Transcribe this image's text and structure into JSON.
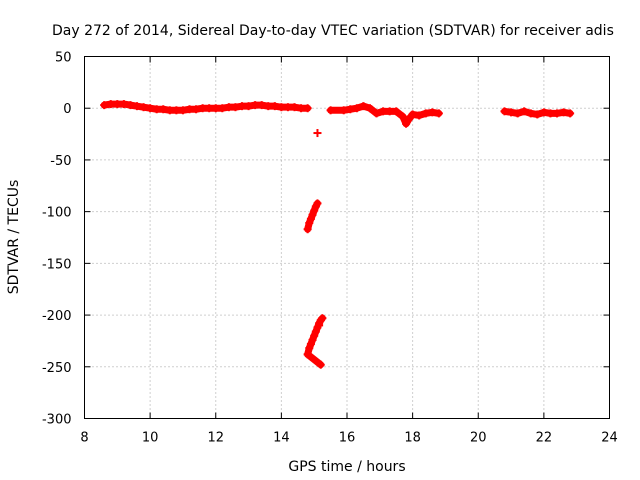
{
  "chart_data": {
    "type": "scatter",
    "title": "Day 272 of 2014, Sidereal Day-to-day VTEC variation (SDTVAR) for receiver adis",
    "xlabel": "GPS time / hours",
    "ylabel": "SDTVAR / TECUs",
    "xlim": [
      8,
      24
    ],
    "ylim": [
      -300,
      50
    ],
    "xticks": [
      8,
      10,
      12,
      14,
      16,
      18,
      20,
      22,
      24
    ],
    "yticks": [
      50,
      0,
      -50,
      -100,
      -150,
      -200,
      -250,
      -300
    ],
    "grid": true,
    "color": "#ff0000",
    "series": [
      {
        "name": "SDTVAR",
        "x": [
          8.6,
          8.8,
          9.0,
          9.2,
          9.4,
          9.6,
          9.8,
          10.0,
          10.2,
          10.4,
          10.6,
          10.8,
          11.0,
          11.2,
          11.4,
          11.6,
          11.8,
          12.0,
          12.2,
          12.4,
          12.6,
          12.8,
          13.0,
          13.2,
          13.4,
          13.6,
          13.8,
          14.0,
          14.2,
          14.4,
          14.6,
          14.8,
          15.1,
          15.5,
          15.9,
          16.1,
          16.3,
          16.5,
          16.7,
          16.9,
          17.1,
          17.3,
          17.5,
          17.7,
          17.8,
          17.9,
          18.0,
          18.2,
          18.4,
          18.6,
          18.8,
          20.8,
          21.0,
          21.2,
          21.4,
          21.6,
          21.8,
          22.0,
          22.2,
          22.4,
          22.6,
          22.8,
          14.8,
          14.85,
          14.9,
          14.95,
          15.0,
          15.05,
          15.1,
          15.15,
          15.2,
          14.8,
          14.85,
          14.9,
          14.95,
          15.0,
          15.05,
          15.1,
          15.15,
          15.2,
          15.25
        ],
        "y": [
          3,
          4,
          4,
          4,
          3,
          2,
          1,
          0,
          -1,
          -1,
          -2,
          -2,
          -2,
          -1,
          -1,
          0,
          0,
          0,
          0,
          1,
          1,
          2,
          2,
          3,
          3,
          2,
          2,
          1,
          1,
          1,
          0,
          0,
          -24,
          -2,
          -2,
          -1,
          0,
          2,
          0,
          -5,
          -3,
          -3,
          -3,
          -8,
          -15,
          -10,
          -6,
          -7,
          -5,
          -4,
          -5,
          -3,
          -4,
          -5,
          -3,
          -5,
          -6,
          -4,
          -5,
          -5,
          -4,
          -5,
          -117,
          -111,
          -107,
          -103,
          -99,
          -95,
          -92,
          -210,
          -248,
          -238,
          -232,
          -228,
          -224,
          -220,
          -216,
          -212,
          -208,
          -205,
          -203
        ]
      }
    ]
  }
}
